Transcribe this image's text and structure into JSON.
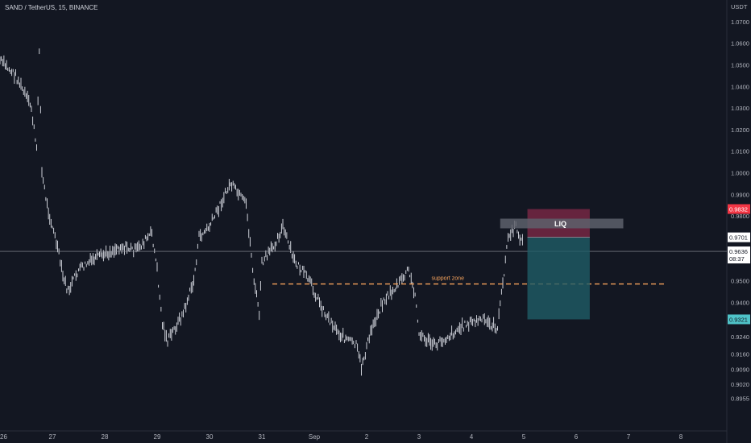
{
  "header": {
    "symbol_line": "SAND / TetherUS, 15, BINANCE"
  },
  "price_axis": {
    "unit": "USDT"
  },
  "colors": {
    "background": "#131722",
    "text": "#b2b5be",
    "candle": "#e0e3eb",
    "support": "#f7a35c",
    "stop_zone": "#8a2b4a",
    "target_zone": "#1f5c66",
    "liq_box": "#5d606b",
    "badge_red": "#f23645",
    "badge_teal": "#4fc3c8",
    "badge_white": "#ffffff"
  },
  "chart_data": {
    "type": "candlestick",
    "xlabel": "",
    "ylabel": "",
    "y_ticks": [
      "0.8955",
      "0.9020",
      "0.9090",
      "0.9160",
      "0.9240",
      "0.9320",
      "0.9400",
      "0.9500",
      "0.9600",
      "0.9701",
      "0.9800",
      "0.9900",
      "1.0000",
      "1.0100",
      "1.0200",
      "1.0300",
      "1.0400",
      "1.0500",
      "1.0600",
      "1.0700"
    ],
    "x_ticks": [
      "26",
      "27",
      "28",
      "29",
      "30",
      "31",
      "Sep",
      "2",
      "3",
      "4",
      "5",
      "6",
      "7",
      "8"
    ],
    "price_path": [
      {
        "t": "26",
        "p": 1.052
      },
      {
        "t": "26.3",
        "p": 1.045
      },
      {
        "t": "26.6",
        "p": 1.03
      },
      {
        "t": "26.7",
        "p": 1.01
      },
      {
        "t": "26.75",
        "p": 1.058
      },
      {
        "t": "26.8",
        "p": 1.0
      },
      {
        "t": "26.9",
        "p": 0.985
      },
      {
        "t": "27.1",
        "p": 0.965
      },
      {
        "t": "27.2",
        "p": 0.952
      },
      {
        "t": "27.3",
        "p": 0.945
      },
      {
        "t": "27.5",
        "p": 0.955
      },
      {
        "t": "27.8",
        "p": 0.96
      },
      {
        "t": "28",
        "p": 0.962
      },
      {
        "t": "28.3",
        "p": 0.966
      },
      {
        "t": "28.6",
        "p": 0.964
      },
      {
        "t": "28.9",
        "p": 0.972
      },
      {
        "t": "29",
        "p": 0.955
      },
      {
        "t": "29.1",
        "p": 0.93
      },
      {
        "t": "29.2",
        "p": 0.922
      },
      {
        "t": "29.5",
        "p": 0.935
      },
      {
        "t": "29.7",
        "p": 0.95
      },
      {
        "t": "29.8",
        "p": 0.97
      },
      {
        "t": "30",
        "p": 0.975
      },
      {
        "t": "30.2",
        "p": 0.985
      },
      {
        "t": "30.4",
        "p": 0.995
      },
      {
        "t": "30.7",
        "p": 0.985
      },
      {
        "t": "30.85",
        "p": 0.95
      },
      {
        "t": "30.95",
        "p": 0.935
      },
      {
        "t": "31",
        "p": 0.958
      },
      {
        "t": "31.2",
        "p": 0.965
      },
      {
        "t": "31.4",
        "p": 0.975
      },
      {
        "t": "31.6",
        "p": 0.96
      },
      {
        "t": "31.9",
        "p": 0.95
      },
      {
        "t": "1.2",
        "p": 0.935
      },
      {
        "t": "1.5",
        "p": 0.925
      },
      {
        "t": "1.8",
        "p": 0.92
      },
      {
        "t": "1.9",
        "p": 0.91
      },
      {
        "t": "2.1",
        "p": 0.928
      },
      {
        "t": "2.3",
        "p": 0.94
      },
      {
        "t": "2.6",
        "p": 0.948
      },
      {
        "t": "2.8",
        "p": 0.955
      },
      {
        "t": "2.95",
        "p": 0.94
      },
      {
        "t": "3",
        "p": 0.925
      },
      {
        "t": "3.3",
        "p": 0.92
      },
      {
        "t": "3.6",
        "p": 0.925
      },
      {
        "t": "3.9",
        "p": 0.93
      },
      {
        "t": "4.2",
        "p": 0.932
      },
      {
        "t": "4.5",
        "p": 0.928
      },
      {
        "t": "4.7",
        "p": 0.97
      },
      {
        "t": "4.85",
        "p": 0.975
      },
      {
        "t": "5",
        "p": 0.966
      }
    ],
    "last_price": "0.9636",
    "countdown": "08:37",
    "entry_price": "0.9701",
    "stop_price": "0.9832",
    "target_price": "0.9321",
    "annotations": [
      {
        "label": "LIQ"
      },
      {
        "label": "support zone",
        "price": 0.9485
      }
    ],
    "grid": false,
    "legend": "none"
  }
}
